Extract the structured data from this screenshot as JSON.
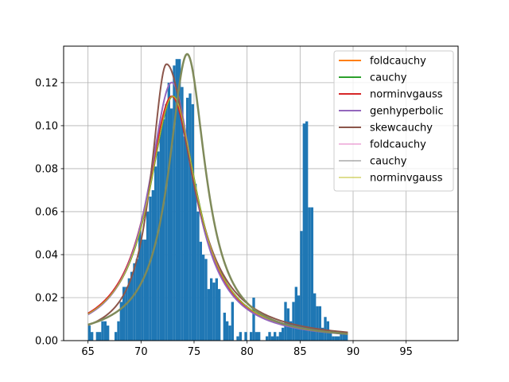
{
  "chart_data": {
    "type": "bar",
    "title": "",
    "xlabel": "",
    "ylabel": "",
    "xlim": [
      62.7,
      99.9
    ],
    "ylim": [
      0,
      0.137
    ],
    "grid": true,
    "legend_position": "top-right",
    "xticks": [
      65,
      70,
      75,
      80,
      85,
      90,
      95
    ],
    "xtick_labels": [
      "65",
      "70",
      "75",
      "80",
      "85",
      "90",
      "95"
    ],
    "yticks": [
      0,
      0.02,
      0.04,
      0.06,
      0.08,
      0.1,
      0.12
    ],
    "ytick_labels": [
      "0.00",
      "0.02",
      "0.04",
      "0.06",
      "0.08",
      "0.10",
      "0.12"
    ],
    "histogram": {
      "color": "#1f77b4",
      "bin_start": 65.0,
      "bin_width": 0.25,
      "density": [
        0.007,
        0.004,
        0.0,
        0.004,
        0.004,
        0.009,
        0.009,
        0.007,
        0.0,
        0.0,
        0.004,
        0.009,
        0.018,
        0.025,
        0.025,
        0.029,
        0.032,
        0.036,
        0.038,
        0.052,
        0.047,
        0.047,
        0.06,
        0.067,
        0.07,
        0.081,
        0.088,
        0.1,
        0.103,
        0.11,
        0.12,
        0.108,
        0.128,
        0.131,
        0.131,
        0.118,
        0.095,
        0.113,
        0.115,
        0.11,
        0.073,
        0.06,
        0.046,
        0.04,
        0.038,
        0.024,
        0.029,
        0.027,
        0.029,
        0.024,
        0.0,
        0.013,
        0.009,
        0.007,
        0.018,
        0.0,
        0.002,
        0.004,
        0.0,
        0.004,
        0.0,
        0.004,
        0.02,
        0.004,
        0.004,
        0.0,
        0.0,
        0.002,
        0.004,
        0.002,
        0.004,
        0.002,
        0.004,
        0.006,
        0.018,
        0.015,
        0.009,
        0.018,
        0.025,
        0.021,
        0.051,
        0.101,
        0.102,
        0.062,
        0.062,
        0.022,
        0.016,
        0.016,
        0.006,
        0.011,
        0.009,
        0.004,
        0.002,
        0.002,
        0.002,
        0.004,
        0.004,
        0.004
      ]
    },
    "series": [
      {
        "name": "foldcauchy",
        "color": "#ff7f0e",
        "width": 2,
        "dist": "cauchy",
        "loc": 73.0,
        "scale": 2.8,
        "w": 1.0,
        "floor": 0
      },
      {
        "name": "cauchy",
        "color": "#2ca02c",
        "width": 2,
        "dist": "cauchy",
        "loc": 73.0,
        "scale": 2.8,
        "w": 1.0,
        "floor": 0
      },
      {
        "name": "norminvgauss",
        "color": "#d62728",
        "width": 2,
        "dist": "skewcauchy",
        "loc": 72.9,
        "scale": 2.8,
        "skew": 0.0,
        "w": 1.0,
        "floor": 0
      },
      {
        "name": "genhyperbolic",
        "color": "#9467bd",
        "width": 2,
        "dist": "cauchy",
        "loc": 72.9,
        "scale": 2.65,
        "w": 1.0,
        "floor": 0
      },
      {
        "name": "skewcauchy",
        "color": "#8c564b",
        "width": 2,
        "dist": "skewcauchy",
        "loc": 72.4,
        "scale": 2.4,
        "skew": 0.25,
        "w": 0.97,
        "floor": 0
      },
      {
        "name": "foldcauchy",
        "color": "#e377c2",
        "width": 1,
        "dist": "cauchy",
        "loc": 73.0,
        "scale": 2.8,
        "w": 1.0,
        "floor": 0
      },
      {
        "name": "cauchy",
        "color": "#7f7f7f",
        "width": 1,
        "dist": "cauchy",
        "loc": 73.0,
        "scale": 2.8,
        "w": 1.0,
        "floor": 0
      },
      {
        "name": "norminvgauss",
        "color": "#bcbd22",
        "width": 1,
        "dist": "cauchy",
        "loc": 73.0,
        "scale": 2.8,
        "w": 1.0,
        "floor": 0
      },
      {
        "name": "",
        "color": "#7f8a5a",
        "width": 2.5,
        "dist": "cauchy",
        "loc": 74.35,
        "scale": 2.1,
        "w": 0.86,
        "floor": 0.003
      }
    ]
  }
}
